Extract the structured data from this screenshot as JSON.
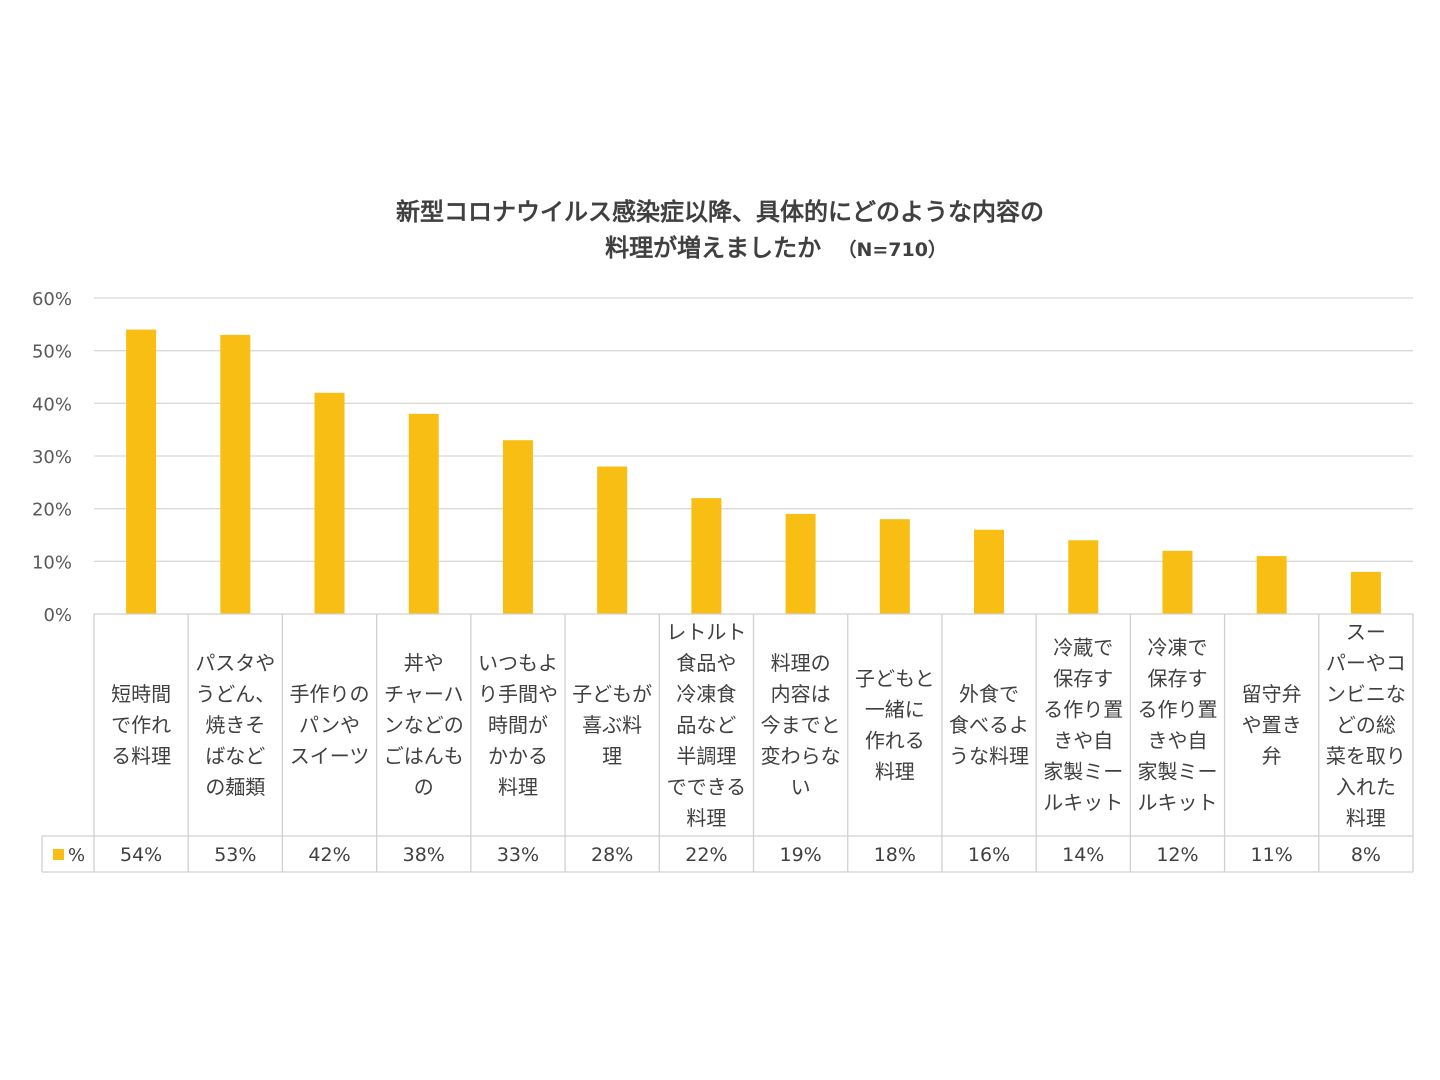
{
  "chart_data": {
    "type": "bar",
    "title": [
      "新型コロナウイルス感染症以降、具体的にどのような内容の",
      "料理が増えましたか"
    ],
    "subtitle": "（N=710）",
    "series": [
      {
        "name": "%",
        "values": [
          54,
          53,
          42,
          38,
          33,
          28,
          22,
          19,
          18,
          16,
          14,
          12,
          11,
          8
        ]
      }
    ],
    "categories": [
      "短時間で作れる料理",
      "パスタやうどん、焼きそばなどの麺類",
      "手作りのパンやスイーツ",
      "丼やチャーハンなどのごはんもの",
      "いつもより手間や時間がかかる料理",
      "子どもが喜ぶ料理",
      "レトルト食品や冷凍食品など半調理でできる料理",
      "料理の内容は今までと変わらない",
      "子どもと一緒に作れる料理",
      "外食で食べるような料理",
      "冷蔵で保存する作り置きや自家製ミールキット",
      "冷凍で保存する作り置きや自家製ミールキット",
      "留守弁や置き弁",
      "スーパーやコンビニなどの総菜を取り入れた料理"
    ],
    "category_lines": [
      [
        "短時間",
        "で作れ",
        "る料理"
      ],
      [
        "パスタや",
        "うどん、",
        "焼きそ",
        "ばなど",
        "の麺類"
      ],
      [
        "手作りの",
        "パンや",
        "スイーツ"
      ],
      [
        "丼や",
        "チャーハ",
        "ンなどの",
        "ごはんも",
        "の"
      ],
      [
        "いつもよ",
        "り手間や",
        "時間が",
        "かかる",
        "料理"
      ],
      [
        "子どもが",
        "喜ぶ料",
        "理"
      ],
      [
        "レトルト",
        "食品や",
        "冷凍食",
        "品など",
        "半調理",
        "でできる",
        "料理"
      ],
      [
        "料理の",
        "内容は",
        "今までと",
        "変わらな",
        "い"
      ],
      [
        "子どもと",
        "一緒に",
        "作れる",
        "料理"
      ],
      [
        "外食で",
        "食べるよ",
        "うな料理"
      ],
      [
        "冷蔵で",
        "保存す",
        "る作り置",
        "きや自",
        "家製ミー",
        "ルキット"
      ],
      [
        "冷凍で",
        "保存す",
        "る作り置",
        "きや自",
        "家製ミー",
        "ルキット"
      ],
      [
        "留守弁",
        "や置き",
        "弁"
      ],
      [
        "スー",
        "パーやコ",
        "ンビニな",
        "どの総",
        "菜を取り",
        "入れた",
        "料理"
      ]
    ],
    "value_labels": [
      "54%",
      "53%",
      "42%",
      "38%",
      "33%",
      "28%",
      "22%",
      "19%",
      "18%",
      "16%",
      "14%",
      "12%",
      "11%",
      "8%"
    ],
    "y_ticks": [
      "0%",
      "10%",
      "20%",
      "30%",
      "40%",
      "50%",
      "60%"
    ],
    "ylim": [
      0,
      60
    ],
    "grid": true,
    "legend": {
      "position": "table-left",
      "label": "%"
    },
    "colors": {
      "bar": "#f9be14",
      "grid": "#d9d9d9",
      "text": "#404040"
    }
  }
}
